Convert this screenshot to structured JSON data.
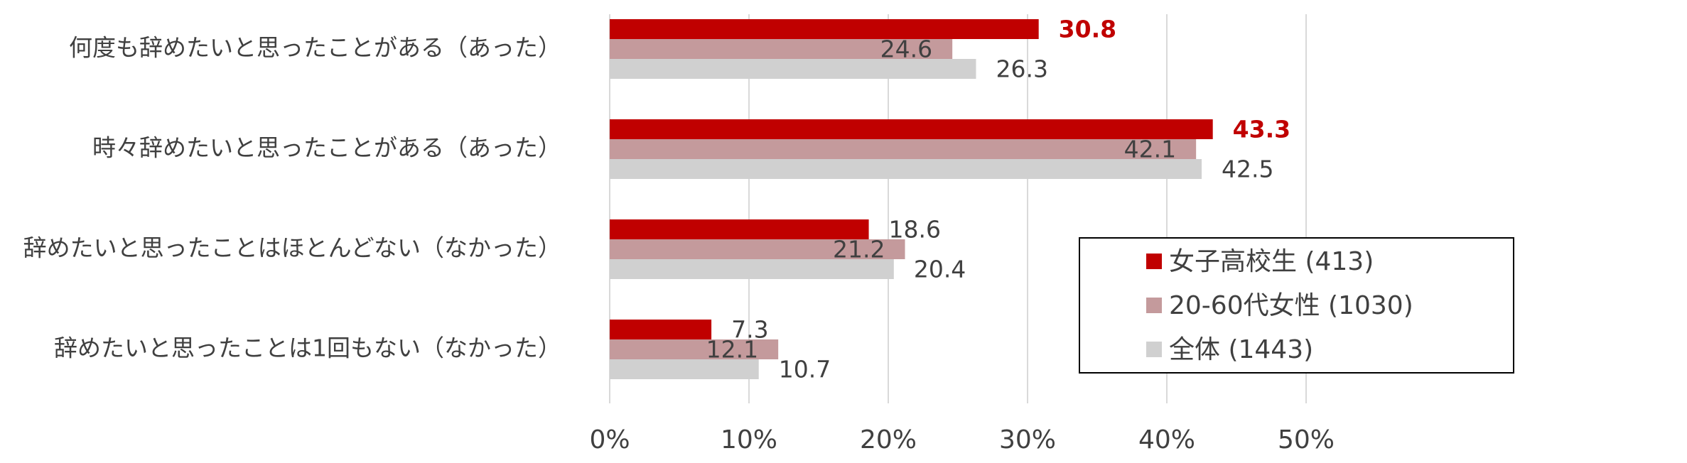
{
  "chart_data": {
    "type": "hbar",
    "categories": [
      "何度も辞めたいと思ったことがある（あった）",
      "時々辞めたいと思ったことがある（あった）",
      "辞めたいと思ったことはほとんどない（なかった）",
      "辞めたいと思ったことは1回もない（なかった）"
    ],
    "series": [
      {
        "name": "女子高校生 (413)",
        "color": "#c00000",
        "values": [
          30.8,
          43.3,
          18.6,
          7.3
        ],
        "label_colors": [
          "#c00000",
          "#c00000",
          "#404040",
          "#404040"
        ],
        "label_bold": [
          true,
          true,
          false,
          false
        ]
      },
      {
        "name": "20-60代女性 (1030)",
        "color": "#c49a9c",
        "values": [
          24.6,
          42.1,
          21.2,
          12.1
        ]
      },
      {
        "name": "全体 (1443)",
        "color": "#d0d0d0",
        "values": [
          26.3,
          42.5,
          20.4,
          10.7
        ]
      }
    ],
    "xlim": [
      0,
      50
    ],
    "xticks": [
      {
        "value": 0,
        "label": "0%"
      },
      {
        "value": 10,
        "label": "10%"
      },
      {
        "value": 20,
        "label": "20%"
      },
      {
        "value": 30,
        "label": "30%"
      },
      {
        "value": 40,
        "label": "40%"
      },
      {
        "value": 50,
        "label": "50%"
      }
    ],
    "grid": true
  }
}
